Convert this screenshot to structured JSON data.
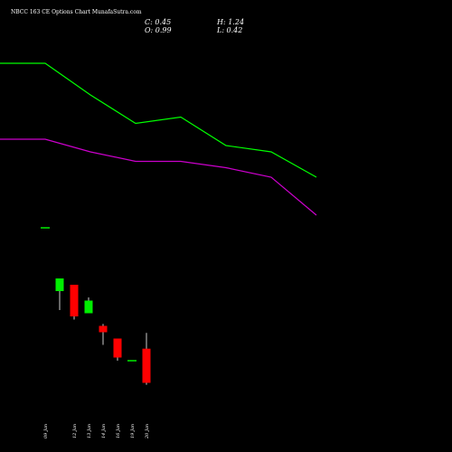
{
  "header": {
    "title": "NBCC 163 CE Options  Chart MunafaSutra.com",
    "close": "C: 0.45",
    "high": "H: 1.24",
    "open": "O: 0.99",
    "low": "L: 0.42"
  },
  "colors": {
    "background": "#000000",
    "up": "#00ee00",
    "down": "#ff0000",
    "ma_fast": "#00ff00",
    "ma_slow": "#cc00cc",
    "text": "#ffffff"
  },
  "chart_data": {
    "type": "candlestick",
    "ylim": [
      0,
      5.5
    ],
    "categories": [
      "09 Jan",
      "",
      "12 Jan",
      "13 Jan",
      "14 Jan",
      "16 Jan",
      "19 Jan",
      "20 Jan"
    ],
    "candles": [
      {
        "label": "09 Jan",
        "open": 2.9,
        "high": 2.9,
        "low": 2.9,
        "close": 2.9
      },
      {
        "label": "",
        "open": 1.9,
        "high": 2.1,
        "low": 1.6,
        "close": 2.1
      },
      {
        "label": "12 Jan",
        "open": 2.0,
        "high": 2.0,
        "low": 1.45,
        "close": 1.5
      },
      {
        "label": "13 Jan",
        "open": 1.55,
        "high": 1.8,
        "low": 1.55,
        "close": 1.75
      },
      {
        "label": "14 Jan",
        "open": 1.35,
        "high": 1.38,
        "low": 1.05,
        "close": 1.25
      },
      {
        "label": "16 Jan",
        "open": 1.15,
        "high": 1.15,
        "low": 0.8,
        "close": 0.85
      },
      {
        "label": "19 Jan",
        "open": 0.8,
        "high": 0.8,
        "low": 0.8,
        "close": 0.8
      },
      {
        "label": "20 Jan",
        "open": 0.99,
        "high": 1.24,
        "low": 0.42,
        "close": 0.45
      }
    ],
    "ma_fast": [
      5.5,
      5.5,
      5.0,
      4.55,
      4.65,
      4.2,
      4.1,
      3.7
    ],
    "ma_slow": [
      4.3,
      4.3,
      4.1,
      3.95,
      3.95,
      3.85,
      3.7,
      3.1
    ],
    "xlabel": "",
    "ylabel": "",
    "grid": false,
    "legend": "none"
  }
}
